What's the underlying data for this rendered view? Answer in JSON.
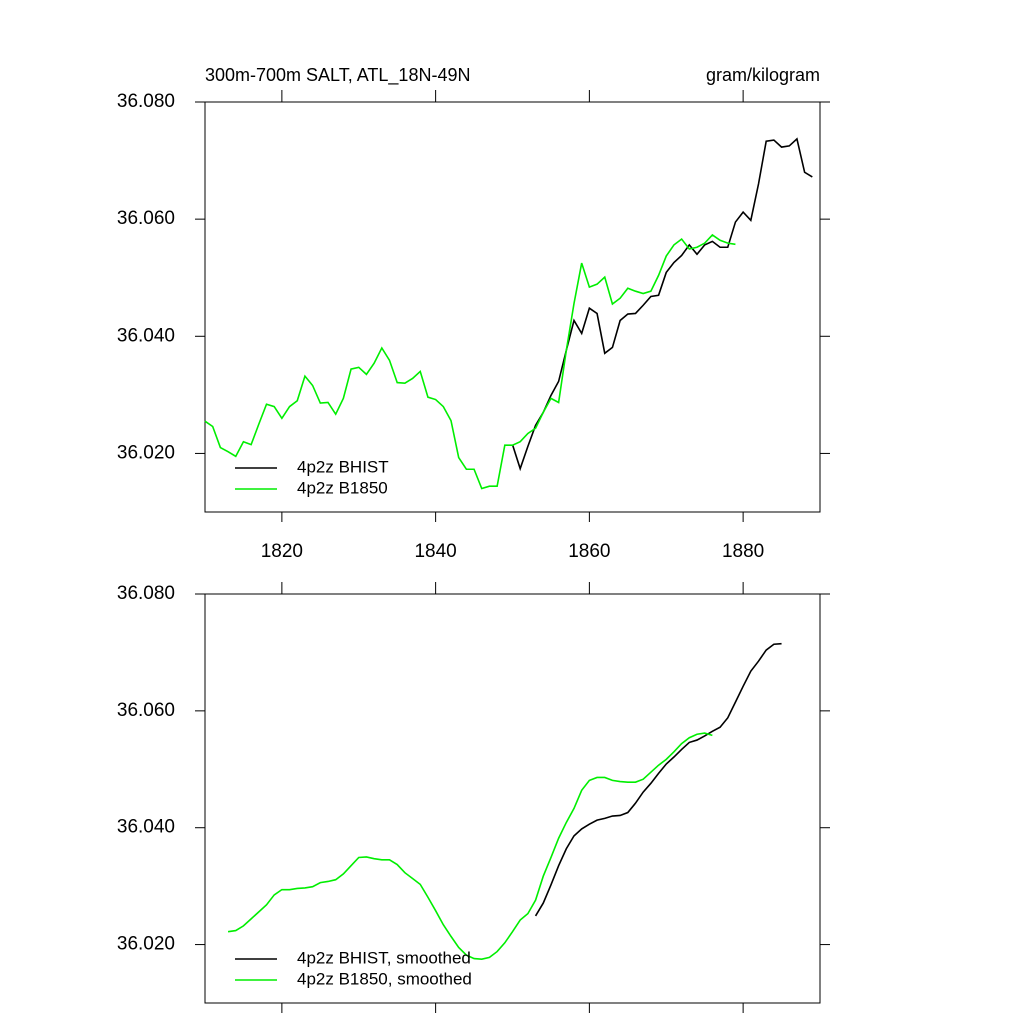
{
  "chart_data": [
    {
      "type": "line",
      "title": "300m-700m SALT, ATL_18N-49N",
      "units": "gram/kilogram",
      "xlim": [
        1810,
        1890
      ],
      "xticks": [
        1820,
        1840,
        1860,
        1880
      ],
      "show_xtick_labels": true,
      "ylim": [
        36.01,
        36.08
      ],
      "yticks": [
        {
          "value": 36.02,
          "label": "36.020"
        },
        {
          "value": 36.04,
          "label": "36.040"
        },
        {
          "value": 36.06,
          "label": "36.060"
        },
        {
          "value": 36.08,
          "label": "36.080"
        }
      ],
      "legend": "lower left",
      "series": [
        {
          "name": "4p2z BHIST",
          "color": "#000000",
          "x": [
            1850,
            1851,
            1852,
            1853,
            1854,
            1855,
            1856,
            1857,
            1858,
            1859,
            1860,
            1861,
            1862,
            1863,
            1864,
            1865,
            1866,
            1867,
            1868,
            1869,
            1870,
            1871,
            1872,
            1873,
            1874,
            1875,
            1876,
            1877,
            1878,
            1879,
            1880,
            1881,
            1882,
            1883,
            1884,
            1885,
            1886,
            1887,
            1888,
            1889
          ],
          "values": [
            36.0215,
            36.0174,
            36.0212,
            36.0248,
            36.027,
            36.0299,
            36.0323,
            36.0376,
            36.0427,
            36.0405,
            36.0448,
            36.0439,
            36.0371,
            36.0381,
            36.0427,
            36.0438,
            36.0439,
            36.0453,
            36.0468,
            36.047,
            36.0509,
            36.0526,
            36.0538,
            36.0556,
            36.054,
            36.0556,
            36.0562,
            36.0552,
            36.0552,
            36.0595,
            36.0612,
            36.0598,
            36.066,
            36.0733,
            36.0735,
            36.0723,
            36.0725,
            36.0737,
            36.068,
            36.0672
          ]
        },
        {
          "name": "4p2z B1850",
          "color": "#00ee00",
          "x": [
            1810,
            1811,
            1812,
            1813,
            1814,
            1815,
            1816,
            1817,
            1818,
            1819,
            1820,
            1821,
            1822,
            1823,
            1824,
            1825,
            1826,
            1827,
            1828,
            1829,
            1830,
            1831,
            1832,
            1833,
            1834,
            1835,
            1836,
            1837,
            1838,
            1839,
            1840,
            1841,
            1842,
            1843,
            1844,
            1845,
            1846,
            1847,
            1848,
            1849,
            1850,
            1851,
            1852,
            1853,
            1854,
            1855,
            1856,
            1857,
            1858,
            1859,
            1860,
            1861,
            1862,
            1863,
            1864,
            1865,
            1866,
            1867,
            1868,
            1869,
            1870,
            1871,
            1872,
            1873,
            1874,
            1875,
            1876,
            1877,
            1878,
            1879
          ],
          "values": [
            36.0255,
            36.0246,
            36.021,
            36.0203,
            36.0195,
            36.022,
            36.0215,
            36.025,
            36.0284,
            36.028,
            36.026,
            36.028,
            36.029,
            36.0332,
            36.0316,
            36.0286,
            36.0287,
            36.0267,
            36.0294,
            36.0344,
            36.0347,
            36.0335,
            36.0354,
            36.038,
            36.0359,
            36.0321,
            36.032,
            36.0328,
            36.034,
            36.0296,
            36.0292,
            36.028,
            36.0256,
            36.0193,
            36.0173,
            36.0173,
            36.014,
            36.0144,
            36.0144,
            36.0214,
            36.0214,
            36.022,
            36.0234,
            36.0243,
            36.027,
            36.0294,
            36.0287,
            36.0376,
            36.0456,
            36.0525,
            36.0484,
            36.0489,
            36.0501,
            36.0455,
            36.0465,
            36.0482,
            36.0477,
            36.0473,
            36.0477,
            36.0504,
            36.0537,
            36.0556,
            36.0566,
            36.0549,
            36.0552,
            36.0559,
            36.0573,
            36.0564,
            36.0559,
            36.0557
          ]
        }
      ]
    },
    {
      "type": "line",
      "xlim": [
        1810,
        1890
      ],
      "xticks": [
        1820,
        1840,
        1860,
        1880
      ],
      "show_xtick_labels": false,
      "ylim": [
        36.01,
        36.08
      ],
      "yticks": [
        {
          "value": 36.02,
          "label": "36.020"
        },
        {
          "value": 36.04,
          "label": "36.040"
        },
        {
          "value": 36.06,
          "label": "36.060"
        },
        {
          "value": 36.08,
          "label": "36.080"
        }
      ],
      "legend": "lower left",
      "series": [
        {
          "name": "4p2z BHIST, smoothed",
          "color": "#000000",
          "x": [
            1853,
            1854,
            1855,
            1856,
            1857,
            1858,
            1859,
            1860,
            1861,
            1862,
            1863,
            1864,
            1865,
            1866,
            1867,
            1868,
            1869,
            1870,
            1871,
            1872,
            1873,
            1874,
            1875,
            1876,
            1877,
            1878,
            1879,
            1880,
            1881,
            1882,
            1883,
            1884,
            1885
          ],
          "values": [
            36.0249,
            36.0271,
            36.0302,
            36.0335,
            36.0364,
            36.0386,
            36.0398,
            36.0406,
            36.0413,
            36.0416,
            36.042,
            36.0421,
            36.0426,
            36.0442,
            36.0461,
            36.0476,
            36.0493,
            36.0509,
            36.0521,
            36.0534,
            36.0546,
            36.055,
            36.0557,
            36.0565,
            36.0572,
            36.0588,
            36.0615,
            36.0642,
            36.0668,
            36.0685,
            36.0704,
            36.0714,
            36.0715
          ]
        },
        {
          "name": "4p2z B1850, smoothed",
          "color": "#00ee00",
          "x": [
            1813,
            1814,
            1815,
            1816,
            1817,
            1818,
            1819,
            1820,
            1821,
            1822,
            1823,
            1824,
            1825,
            1826,
            1827,
            1828,
            1829,
            1830,
            1831,
            1832,
            1833,
            1834,
            1835,
            1836,
            1837,
            1838,
            1839,
            1840,
            1841,
            1842,
            1843,
            1844,
            1845,
            1846,
            1847,
            1848,
            1849,
            1850,
            1851,
            1852,
            1853,
            1854,
            1855,
            1856,
            1857,
            1858,
            1859,
            1860,
            1861,
            1862,
            1863,
            1864,
            1865,
            1866,
            1867,
            1868,
            1869,
            1870,
            1871,
            1872,
            1873,
            1874,
            1875,
            1876
          ],
          "values": [
            36.0222,
            36.0224,
            36.0232,
            36.0244,
            36.0256,
            36.0268,
            36.0285,
            36.0294,
            36.0294,
            36.0296,
            36.0297,
            36.0299,
            36.0306,
            36.0308,
            36.0311,
            36.0321,
            36.0335,
            36.0349,
            36.035,
            36.0347,
            36.0345,
            36.0345,
            36.0337,
            36.0323,
            36.0313,
            36.0303,
            36.0281,
            36.0258,
            36.0234,
            36.0214,
            36.0195,
            36.0182,
            36.0176,
            36.0175,
            36.0178,
            36.0188,
            36.0203,
            36.0222,
            36.0242,
            36.0253,
            36.0276,
            36.0317,
            36.0349,
            36.0382,
            36.0409,
            36.0433,
            36.0464,
            36.0481,
            36.0486,
            36.0486,
            36.0481,
            36.0479,
            36.0478,
            36.0478,
            36.0483,
            36.0495,
            36.0507,
            36.0517,
            36.053,
            36.0544,
            36.0554,
            36.056,
            36.0562,
            36.0558
          ]
        }
      ]
    }
  ]
}
